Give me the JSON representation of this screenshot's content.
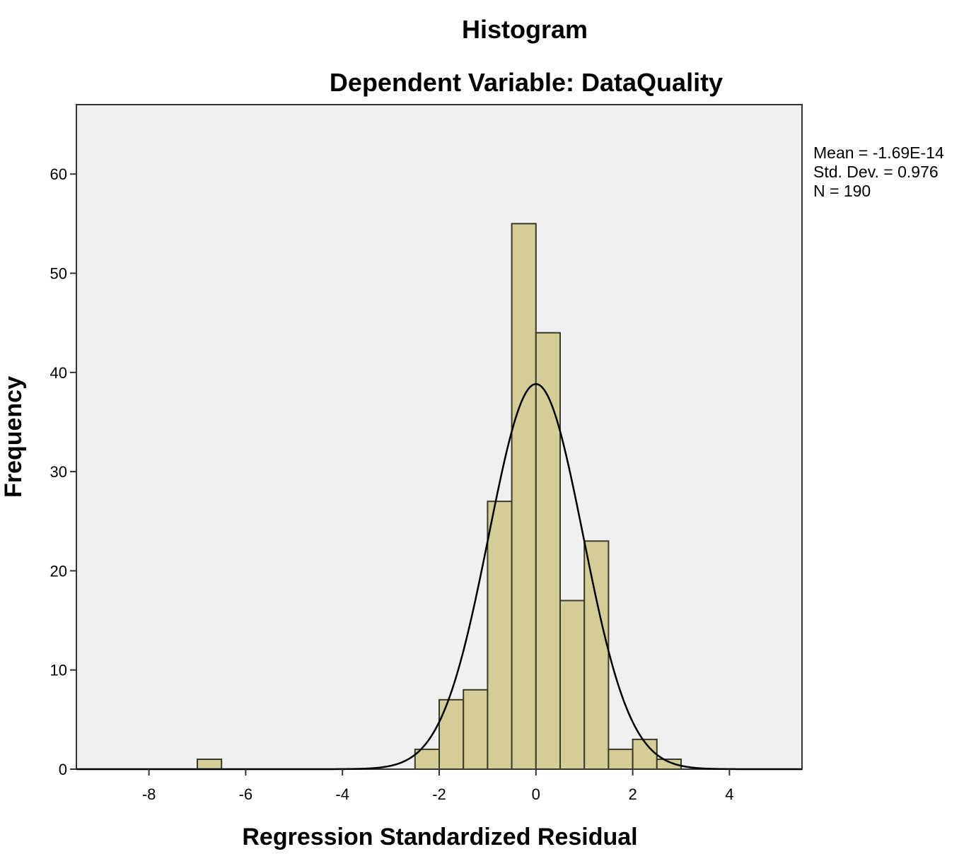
{
  "chart_data": {
    "type": "bar",
    "title": "Histogram",
    "subtitle": "Dependent Variable: DataQuality",
    "xlabel": "Regression Standardized Residual",
    "ylabel": "Frequency",
    "xlim": [
      -9.5,
      5.5
    ],
    "ylim": [
      0,
      67
    ],
    "x_ticks": [
      -8,
      -6,
      -4,
      -2,
      0,
      2,
      4
    ],
    "y_ticks": [
      0,
      10,
      20,
      30,
      40,
      50,
      60
    ],
    "bin_width": 0.5,
    "bins": [
      {
        "start": -7.0,
        "count": 1
      },
      {
        "start": -2.5,
        "count": 2
      },
      {
        "start": -2.0,
        "count": 7
      },
      {
        "start": -1.5,
        "count": 8
      },
      {
        "start": -1.0,
        "count": 27
      },
      {
        "start": -0.5,
        "count": 55
      },
      {
        "start": 0.0,
        "count": 44
      },
      {
        "start": 0.5,
        "count": 17
      },
      {
        "start": 1.0,
        "count": 23
      },
      {
        "start": 1.5,
        "count": 2
      },
      {
        "start": 2.0,
        "count": 3
      },
      {
        "start": 2.5,
        "count": 1
      }
    ],
    "normal_curve": {
      "mean": 0,
      "sd": 0.976,
      "n": 190
    },
    "stats": {
      "mean": "Mean = -1.69E-14",
      "std_dev": "Std. Dev. = 0.976",
      "n": "N = 190"
    },
    "colors": {
      "bar_fill": "#d4cd98",
      "bar_stroke": "#3a3a2a",
      "plot_background": "#f0f0f0",
      "curve": "#000000"
    },
    "grid": false,
    "legend": "none"
  }
}
